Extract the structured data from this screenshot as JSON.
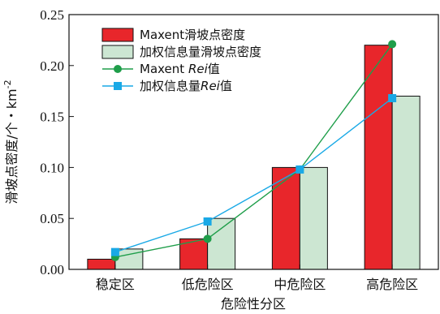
{
  "chart_data": {
    "type": "bar",
    "categories": [
      "稳定区",
      "低危险区",
      "中危险区",
      "高危险区"
    ],
    "series": [
      {
        "name": "Maxent滑坡点密度",
        "kind": "bar",
        "color": "#e8262b",
        "values": [
          0.01,
          0.03,
          0.1,
          0.22
        ]
      },
      {
        "name": "加权信息量滑坡点密度",
        "kind": "bar",
        "color": "#cce6d2",
        "values": [
          0.02,
          0.05,
          0.1,
          0.17
        ]
      },
      {
        "name": "Maxent Rei值",
        "kind": "line",
        "marker": "circle",
        "color": "#1f9e4a",
        "values": [
          0.012,
          0.03,
          0.098,
          0.221
        ]
      },
      {
        "name": "加权信息量Rei值",
        "kind": "line",
        "marker": "square",
        "color": "#19a9e6",
        "values": [
          0.017,
          0.047,
          0.098,
          0.168
        ]
      }
    ],
    "legend": {
      "placement": "top-left",
      "items": [
        {
          "prefix": "Maxent",
          "suffix": "滑坡点密度",
          "italic": ""
        },
        {
          "prefix": "加权信息量滑坡点密度",
          "suffix": "",
          "italic": ""
        },
        {
          "prefix": "Maxent ",
          "italic": "Rei",
          "suffix": "值"
        },
        {
          "prefix": "加权信息量",
          "italic": "Rei",
          "suffix": "值"
        }
      ]
    },
    "xlabel": "危险性分区",
    "ylabel": "滑坡点密度/个・km",
    "ylabel_superscript": "-2",
    "ylim": [
      0,
      0.25
    ],
    "yticks": [
      "0.00",
      "0.05",
      "0.10",
      "0.15",
      "0.20",
      "0.25"
    ],
    "grid": false
  }
}
